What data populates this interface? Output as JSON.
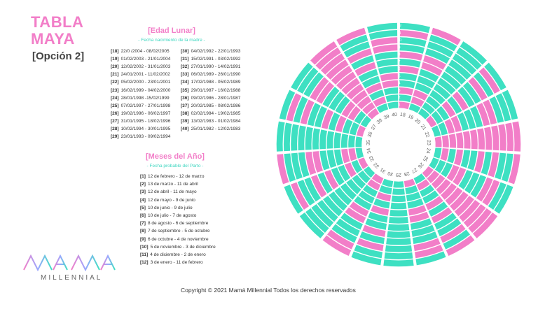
{
  "header": {
    "title_line1": "TABLA",
    "title_line2": "MAYA",
    "subtitle": "[Opción 2]"
  },
  "edad_lunar": {
    "heading": "[Edad Lunar]",
    "subheading": "- Fecha nacimiento de la madre -",
    "left": [
      {
        "age": "[18]",
        "range": "22/0 /2004 - 08/02/2005"
      },
      {
        "age": "[19]",
        "range": "01/02/2003 - 21/01/2004"
      },
      {
        "age": "[20]",
        "range": "12/02/2002 - 31/01/2003"
      },
      {
        "age": "[21]",
        "range": "24/01/2001 - 11/02/2002"
      },
      {
        "age": "[22]",
        "range": "05/02/2000 - 23/01/2001"
      },
      {
        "age": "[23]",
        "range": "16/02/1999 - 04/02/2000"
      },
      {
        "age": "[24]",
        "range": "28/01/1998 -15/02/1999"
      },
      {
        "age": "[25]",
        "range": "07/02/1997 - 27/01/1998"
      },
      {
        "age": "[26]",
        "range": "19/02/1996 - 06/02/1997"
      },
      {
        "age": "[27]",
        "range": "31/01/1995 - 18/02/1996"
      },
      {
        "age": "[28]",
        "range": "10/02/1994 - 30/01/1995"
      },
      {
        "age": "[29]",
        "range": "23/01/1993 - 09/02/1994"
      }
    ],
    "right": [
      {
        "age": "[30]",
        "range": "04/02/1992 - 22/01/1993"
      },
      {
        "age": "[31]",
        "range": "15/02/1991 - 03/02/1992"
      },
      {
        "age": "[32]",
        "range": "27/01/1990 - 14/02/1991"
      },
      {
        "age": "[33]",
        "range": "06/02/1989 - 26/01/1990"
      },
      {
        "age": "[34]",
        "range": "17/02/1988 - 05/02/1989"
      },
      {
        "age": "[35]",
        "range": "29/01/1987 - 16/02/1988"
      },
      {
        "age": "[36]",
        "range": "09/02/1986 - 28/01/1987"
      },
      {
        "age": "[37]",
        "range": "20/02/1985 - 08/02/1986"
      },
      {
        "age": "[38]",
        "range": "02/02/1984 - 19/02/1985"
      },
      {
        "age": "[39]",
        "range": "13/02/1983 - 01/02/1984"
      },
      {
        "age": "[40]",
        "range": "25/01/1982 - 12/02/1983"
      }
    ]
  },
  "meses": {
    "heading": "[Meses del Año]",
    "subheading": "- Fecha probable del Parto -",
    "items": [
      {
        "num": "[1]",
        "range": "12 de febrero - 12 de marzo"
      },
      {
        "num": "[2]",
        "range": "13 de marzo - 11 de abril"
      },
      {
        "num": "[3]",
        "range": "12 de abril - 11 de mayo"
      },
      {
        "num": "[4]",
        "range": "12 de mayo - 9 de junio"
      },
      {
        "num": "[5]",
        "range": "10 de junio - 9 de julio"
      },
      {
        "num": "[6]",
        "range": "10 de julio - 7 de agosto"
      },
      {
        "num": "[7]",
        "range": "8 de agosto - 6 de septiembre"
      },
      {
        "num": "[8]",
        "range": "7 de septiembre - 5 de octubre"
      },
      {
        "num": "[9]",
        "range": "6 de octubre - 4 de noviembre"
      },
      {
        "num": "[10]",
        "range": "5 de noviembre - 3 de diciembre"
      },
      {
        "num": "[11]",
        "range": "4 de diciembre - 2 de enero"
      },
      {
        "num": "[12]",
        "range": "3 de enero - 11 de febrero"
      }
    ]
  },
  "wheel": {
    "ages": [
      "18",
      "19",
      "20",
      "21",
      "22",
      "23",
      "24",
      "25",
      "26",
      "27",
      "28",
      "29",
      "30",
      "31",
      "32",
      "33",
      "34",
      "35",
      "36",
      "37",
      "38",
      "39",
      "40"
    ],
    "month_labels": [
      "1",
      "2",
      "3",
      "4",
      "5",
      "6",
      "7",
      "8",
      "9",
      "10",
      "11",
      "12"
    ],
    "colors": {
      "pink": "#f27ec8",
      "teal": "#3ee0c2"
    }
  },
  "logo": {
    "text": "MILLENNIAL"
  },
  "footer": {
    "copyright": "Copyright © 2021 Mamá Millennial Todos los derechos reservados"
  }
}
